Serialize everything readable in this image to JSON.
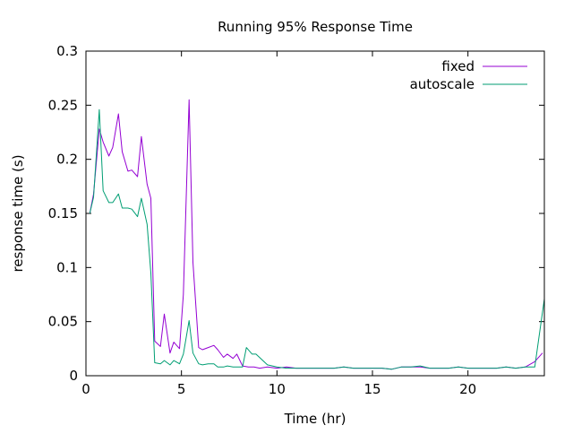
{
  "chart_data": {
    "type": "line",
    "title": "Running 95% Response Time",
    "xlabel": "Time (hr)",
    "ylabel": "response time (s)",
    "xlim": [
      0,
      24
    ],
    "ylim": [
      0,
      0.3
    ],
    "xticks": [
      0,
      5,
      10,
      15,
      20
    ],
    "xtick_labels": [
      "0",
      "5",
      "10",
      "15",
      "20"
    ],
    "yticks": [
      0,
      0.05,
      0.1,
      0.15,
      0.2,
      0.25,
      0.3
    ],
    "ytick_labels": [
      "0",
      "0.05",
      "0.1",
      "0.15",
      "0.2",
      "0.25",
      "0.3"
    ],
    "grid": false,
    "legend_position": "top-right",
    "series": [
      {
        "name": "fixed",
        "color": "#9400d3",
        "points": [
          [
            0.2,
            0.15
          ],
          [
            0.4,
            0.168
          ],
          [
            0.7,
            0.228
          ],
          [
            0.9,
            0.216
          ],
          [
            1.2,
            0.203
          ],
          [
            1.4,
            0.211
          ],
          [
            1.7,
            0.242
          ],
          [
            1.9,
            0.207
          ],
          [
            2.2,
            0.189
          ],
          [
            2.4,
            0.19
          ],
          [
            2.7,
            0.184
          ],
          [
            2.9,
            0.221
          ],
          [
            3.2,
            0.177
          ],
          [
            3.4,
            0.164
          ],
          [
            3.6,
            0.032
          ],
          [
            3.9,
            0.027
          ],
          [
            4.1,
            0.057
          ],
          [
            4.4,
            0.021
          ],
          [
            4.6,
            0.031
          ],
          [
            4.9,
            0.025
          ],
          [
            5.1,
            0.075
          ],
          [
            5.4,
            0.255
          ],
          [
            5.6,
            0.105
          ],
          [
            5.9,
            0.026
          ],
          [
            6.1,
            0.024
          ],
          [
            6.4,
            0.026
          ],
          [
            6.7,
            0.028
          ],
          [
            6.9,
            0.024
          ],
          [
            7.2,
            0.017
          ],
          [
            7.4,
            0.02
          ],
          [
            7.7,
            0.016
          ],
          [
            7.9,
            0.02
          ],
          [
            8.2,
            0.009
          ],
          [
            8.5,
            0.008
          ],
          [
            8.8,
            0.008
          ],
          [
            9.1,
            0.007
          ],
          [
            9.5,
            0.008
          ],
          [
            10.0,
            0.007
          ],
          [
            10.5,
            0.008
          ],
          [
            11.0,
            0.007
          ],
          [
            11.5,
            0.007
          ],
          [
            12.0,
            0.007
          ],
          [
            12.5,
            0.007
          ],
          [
            13.0,
            0.007
          ],
          [
            13.5,
            0.008
          ],
          [
            14.0,
            0.007
          ],
          [
            14.5,
            0.007
          ],
          [
            15.0,
            0.007
          ],
          [
            15.5,
            0.007
          ],
          [
            16.0,
            0.006
          ],
          [
            16.5,
            0.008
          ],
          [
            17.0,
            0.008
          ],
          [
            17.5,
            0.008
          ],
          [
            18.0,
            0.007
          ],
          [
            18.5,
            0.007
          ],
          [
            19.0,
            0.007
          ],
          [
            19.5,
            0.008
          ],
          [
            20.0,
            0.007
          ],
          [
            20.5,
            0.007
          ],
          [
            21.0,
            0.007
          ],
          [
            21.5,
            0.007
          ],
          [
            22.0,
            0.008
          ],
          [
            22.5,
            0.007
          ],
          [
            23.0,
            0.008
          ],
          [
            23.5,
            0.013
          ],
          [
            23.9,
            0.021
          ]
        ]
      },
      {
        "name": "autoscale",
        "color": "#009e73",
        "points": [
          [
            0.2,
            0.15
          ],
          [
            0.4,
            0.165
          ],
          [
            0.7,
            0.246
          ],
          [
            0.9,
            0.171
          ],
          [
            1.2,
            0.16
          ],
          [
            1.4,
            0.16
          ],
          [
            1.7,
            0.168
          ],
          [
            1.9,
            0.155
          ],
          [
            2.2,
            0.155
          ],
          [
            2.4,
            0.154
          ],
          [
            2.7,
            0.147
          ],
          [
            2.9,
            0.164
          ],
          [
            3.2,
            0.14
          ],
          [
            3.4,
            0.095
          ],
          [
            3.6,
            0.012
          ],
          [
            3.9,
            0.011
          ],
          [
            4.1,
            0.014
          ],
          [
            4.4,
            0.01
          ],
          [
            4.6,
            0.014
          ],
          [
            4.9,
            0.011
          ],
          [
            5.1,
            0.02
          ],
          [
            5.4,
            0.051
          ],
          [
            5.6,
            0.021
          ],
          [
            5.9,
            0.011
          ],
          [
            6.1,
            0.01
          ],
          [
            6.4,
            0.011
          ],
          [
            6.7,
            0.011
          ],
          [
            6.9,
            0.008
          ],
          [
            7.2,
            0.008
          ],
          [
            7.4,
            0.009
          ],
          [
            7.7,
            0.008
          ],
          [
            7.9,
            0.008
          ],
          [
            8.2,
            0.008
          ],
          [
            8.4,
            0.026
          ],
          [
            8.7,
            0.02
          ],
          [
            8.9,
            0.02
          ],
          [
            9.2,
            0.015
          ],
          [
            9.5,
            0.01
          ],
          [
            10.0,
            0.008
          ],
          [
            10.5,
            0.007
          ],
          [
            11.0,
            0.007
          ],
          [
            11.5,
            0.007
          ],
          [
            12.0,
            0.007
          ],
          [
            12.5,
            0.007
          ],
          [
            13.0,
            0.007
          ],
          [
            13.5,
            0.008
          ],
          [
            14.0,
            0.007
          ],
          [
            14.5,
            0.007
          ],
          [
            15.0,
            0.007
          ],
          [
            15.5,
            0.007
          ],
          [
            16.0,
            0.006
          ],
          [
            16.5,
            0.008
          ],
          [
            17.0,
            0.008
          ],
          [
            17.5,
            0.009
          ],
          [
            18.0,
            0.007
          ],
          [
            18.5,
            0.007
          ],
          [
            19.0,
            0.007
          ],
          [
            19.5,
            0.008
          ],
          [
            20.0,
            0.007
          ],
          [
            20.5,
            0.007
          ],
          [
            21.0,
            0.007
          ],
          [
            21.5,
            0.007
          ],
          [
            22.0,
            0.008
          ],
          [
            22.5,
            0.007
          ],
          [
            23.0,
            0.008
          ],
          [
            23.5,
            0.008
          ],
          [
            24.0,
            0.071
          ]
        ]
      }
    ]
  }
}
